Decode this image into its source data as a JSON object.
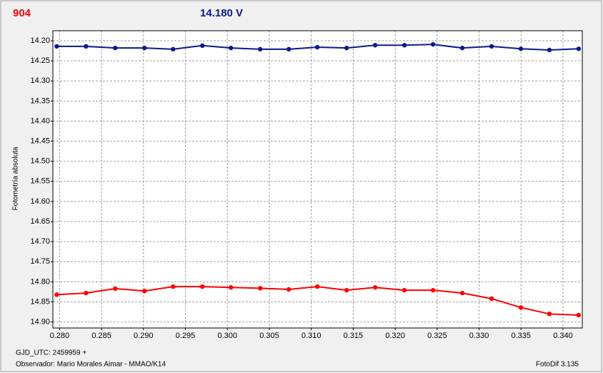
{
  "chart_data": {
    "type": "line",
    "title": "904",
    "subtitle": "14.180 V",
    "y_label": "Fotometría absoluta",
    "footer_left": [
      "GJD_UTC: 2459959 +",
      "Observador: Mario Morales Aimar - MMAO/K14"
    ],
    "footer_right": "FotoDif 3.135",
    "title_color": "#ff0000",
    "subtitle_color": "#0a1a8c",
    "x": [
      0.27966,
      0.28315,
      0.28663,
      0.29012,
      0.29353,
      0.29702,
      0.30042,
      0.30391,
      0.30732,
      0.31072,
      0.31421,
      0.31761,
      0.3211,
      0.32451,
      0.328,
      0.33149,
      0.33498,
      0.33838,
      0.34187
    ],
    "series": [
      {
        "color": "#0a1a8c",
        "values": [
          14.214,
          14.214,
          14.218,
          14.218,
          14.221,
          14.212,
          14.218,
          14.221,
          14.221,
          14.216,
          14.218,
          14.211,
          14.211,
          14.209,
          14.218,
          14.214,
          14.22,
          14.223,
          14.22
        ]
      },
      {
        "color": "#ff0000",
        "values": [
          14.832,
          14.828,
          14.817,
          14.823,
          14.812,
          14.812,
          14.814,
          14.816,
          14.819,
          14.812,
          14.821,
          14.814,
          14.821,
          14.821,
          14.828,
          14.842,
          14.864,
          14.88,
          14.883
        ]
      }
    ],
    "xlim": [
      0.2792,
      0.3423
    ],
    "xticks": [
      {
        "value": 0.28,
        "label": "0.280"
      },
      {
        "value": 0.285,
        "label": "0.285"
      },
      {
        "value": 0.29,
        "label": "0.290"
      },
      {
        "value": 0.295,
        "label": "0.295"
      },
      {
        "value": 0.3,
        "label": "0.300"
      },
      {
        "value": 0.305,
        "label": "0.305"
      },
      {
        "value": 0.31,
        "label": "0.310"
      },
      {
        "value": 0.315,
        "label": "0.315"
      },
      {
        "value": 0.32,
        "label": "0.320"
      },
      {
        "value": 0.325,
        "label": "0.325"
      },
      {
        "value": 0.33,
        "label": "0.330"
      },
      {
        "value": 0.335,
        "label": "0.335"
      },
      {
        "value": 0.34,
        "label": "0.340"
      }
    ],
    "ylim": [
      14.915,
      14.175
    ],
    "yticks": [
      {
        "value": 14.2,
        "label": "14.20"
      },
      {
        "value": 14.25,
        "label": "14.25"
      },
      {
        "value": 14.3,
        "label": "14.30"
      },
      {
        "value": 14.35,
        "label": "14.35"
      },
      {
        "value": 14.4,
        "label": "14.40"
      },
      {
        "value": 14.45,
        "label": "14.45"
      },
      {
        "value": 14.5,
        "label": "14.50"
      },
      {
        "value": 14.55,
        "label": "14.55"
      },
      {
        "value": 14.6,
        "label": "14.60"
      },
      {
        "value": 14.65,
        "label": "14.65"
      },
      {
        "value": 14.7,
        "label": "14.70"
      },
      {
        "value": 14.75,
        "label": "14.75"
      },
      {
        "value": 14.8,
        "label": "14.80"
      },
      {
        "value": 14.85,
        "label": "14.85"
      },
      {
        "value": 14.9,
        "label": "14.90"
      }
    ],
    "grid": true
  }
}
